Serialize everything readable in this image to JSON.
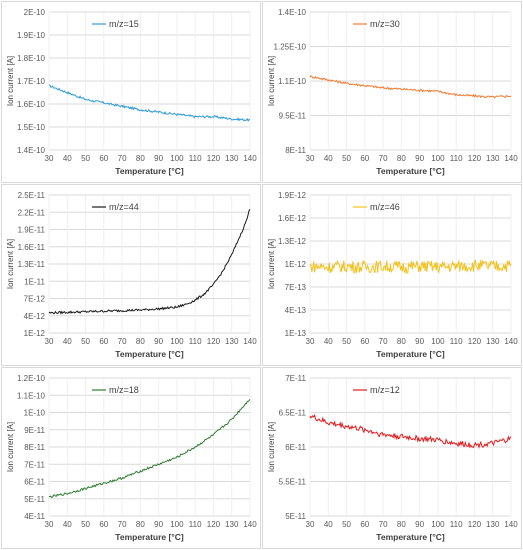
{
  "chart_data": [
    {
      "type": "line",
      "xlabel": "Temperature [°C]",
      "ylabel": "Ion current [A]",
      "xlim": [
        30,
        140
      ],
      "xticks": [
        30,
        40,
        50,
        60,
        70,
        80,
        90,
        100,
        110,
        120,
        130,
        140
      ],
      "ylim": [
        1.4e-10,
        2e-10
      ],
      "yticks": [
        "1.4E-10",
        "1.5E-10",
        "1.6E-10",
        "1.7E-10",
        "1.8E-10",
        "1.9E-10",
        "2E-10"
      ],
      "ytick_values": [
        1.4e-10,
        1.5e-10,
        1.6e-10,
        1.7e-10,
        1.8e-10,
        1.9e-10,
        2e-10
      ],
      "grid": true,
      "legend_position": "top-left",
      "series": [
        {
          "name": "m/z=15",
          "color": "#2e9bd6",
          "x": [
            30,
            40,
            50,
            60,
            70,
            80,
            90,
            100,
            110,
            120,
            130,
            140
          ],
          "y": [
            1.68e-10,
            1.65e-10,
            1.62e-10,
            1.605e-10,
            1.59e-10,
            1.575e-10,
            1.565e-10,
            1.555e-10,
            1.545e-10,
            1.545e-10,
            1.535e-10,
            1.53e-10
          ]
        }
      ]
    },
    {
      "type": "line",
      "xlabel": "Temperature [°C]",
      "ylabel": "Ion current [A]",
      "xlim": [
        30,
        140
      ],
      "xticks": [
        30,
        40,
        50,
        60,
        70,
        80,
        90,
        100,
        110,
        120,
        130,
        140
      ],
      "ylim": [
        8e-11,
        1.4e-10
      ],
      "yticks": [
        "8E-11",
        "9.5E-11",
        "1.1E-10",
        "1.25E-10",
        "1.4E-10"
      ],
      "ytick_values": [
        8e-11,
        9.5e-11,
        1.1e-10,
        1.25e-10,
        1.4e-10
      ],
      "grid": true,
      "legend_position": "top-left",
      "series": [
        {
          "name": "m/z=30",
          "color": "#ed7d31",
          "x": [
            30,
            40,
            50,
            60,
            70,
            80,
            90,
            100,
            110,
            120,
            130,
            140
          ],
          "y": [
            1.12e-10,
            1.105e-10,
            1.09e-10,
            1.08e-10,
            1.07e-10,
            1.065e-10,
            1.06e-10,
            1.055e-10,
            1.04e-10,
            1.035e-10,
            1.03e-10,
            1.035e-10
          ]
        }
      ]
    },
    {
      "type": "line",
      "xlabel": "Temperature [°C]",
      "ylabel": "Ion current [A]",
      "xlim": [
        30,
        140
      ],
      "xticks": [
        30,
        40,
        50,
        60,
        70,
        80,
        90,
        100,
        110,
        120,
        130,
        140
      ],
      "ylim": [
        1e-12,
        2.5e-11
      ],
      "yticks": [
        "1E-12",
        "4E-12",
        "7E-12",
        "1E-11",
        "1.3E-11",
        "1.6E-11",
        "1.9E-11",
        "2.2E-11",
        "2.5E-11"
      ],
      "ytick_values": [
        1e-12,
        4e-12,
        7e-12,
        1e-11,
        1.3e-11,
        1.6e-11,
        1.9e-11,
        2.2e-11,
        2.5e-11
      ],
      "grid": true,
      "legend_position": "top-left",
      "series": [
        {
          "name": "m/z=44",
          "color": "#1a1a1a",
          "x": [
            30,
            40,
            50,
            60,
            70,
            80,
            90,
            100,
            105,
            110,
            115,
            120,
            125,
            130,
            135,
            138,
            140
          ],
          "y": [
            4.5e-12,
            4.6e-12,
            4.7e-12,
            4.8e-12,
            4.9e-12,
            5e-12,
            5.2e-12,
            5.5e-12,
            6e-12,
            6.7e-12,
            7.8e-12,
            9.4e-12,
            1.17e-11,
            1.46e-11,
            1.82e-11,
            2.05e-11,
            2.27e-11
          ]
        }
      ]
    },
    {
      "type": "line",
      "xlabel": "Temperature [°C]",
      "ylabel": "Ion current [A]",
      "xlim": [
        30,
        140
      ],
      "xticks": [
        30,
        40,
        50,
        60,
        70,
        80,
        90,
        100,
        110,
        120,
        130,
        140
      ],
      "ylim": [
        1e-13,
        1.9e-12
      ],
      "yticks": [
        "1E-13",
        "4E-13",
        "7E-13",
        "1E-12",
        "1.3E-12",
        "1.6E-12",
        "1.9E-12"
      ],
      "ytick_values": [
        1e-13,
        4e-13,
        7e-13,
        1e-12,
        1.3e-12,
        1.6e-12,
        1.9e-12
      ],
      "grid": true,
      "legend_position": "top-left",
      "series": [
        {
          "name": "m/z=46",
          "color": "#f2c11a",
          "x": [
            30,
            40,
            50,
            60,
            70,
            80,
            90,
            100,
            110,
            120,
            130,
            140
          ],
          "y": [
            9.7e-13,
            9.6e-13,
            9.7e-13,
            9.6e-13,
            9.7e-13,
            9.6e-13,
            9.7e-13,
            9.6e-13,
            9.7e-13,
            9.8e-13,
            9.7e-13,
            9.8e-13
          ]
        }
      ]
    },
    {
      "type": "line",
      "xlabel": "Temperature [°C]",
      "ylabel": "Ion current [A]",
      "xlim": [
        30,
        140
      ],
      "xticks": [
        30,
        40,
        50,
        60,
        70,
        80,
        90,
        100,
        110,
        120,
        130,
        140
      ],
      "ylim": [
        4e-11,
        1.2e-10
      ],
      "yticks": [
        "4E-11",
        "5E-11",
        "6E-11",
        "7E-11",
        "8E-11",
        "9E-11",
        "1E-10",
        "1.1E-10",
        "1.2E-10"
      ],
      "ytick_values": [
        4e-11,
        5e-11,
        6e-11,
        7e-11,
        8e-11,
        9e-11,
        1e-10,
        1.1e-10,
        1.2e-10
      ],
      "grid": true,
      "legend_position": "top-left",
      "series": [
        {
          "name": "m/z=18",
          "color": "#2e7d32",
          "x": [
            30,
            40,
            50,
            60,
            70,
            80,
            90,
            100,
            110,
            120,
            130,
            140
          ],
          "y": [
            5.1e-11,
            5.3e-11,
            5.6e-11,
            5.9e-11,
            6.2e-11,
            6.6e-11,
            7e-11,
            7.4e-11,
            8e-11,
            8.7e-11,
            9.6e-11,
            1.08e-10
          ]
        }
      ]
    },
    {
      "type": "line",
      "xlabel": "Temperature [°C]",
      "ylabel": "Ion current [A]",
      "xlim": [
        30,
        140
      ],
      "xticks": [
        30,
        40,
        50,
        60,
        70,
        80,
        90,
        100,
        110,
        120,
        130,
        140
      ],
      "ylim": [
        5e-11,
        7e-11
      ],
      "yticks": [
        "5E-11",
        "5.5E-11",
        "6E-11",
        "6.5E-11",
        "7E-11"
      ],
      "ytick_values": [
        5e-11,
        5.5e-11,
        6e-11,
        6.5e-11,
        7e-11
      ],
      "grid": true,
      "legend_position": "top-left",
      "series": [
        {
          "name": "m/z=12",
          "color": "#e31a1c",
          "x": [
            30,
            40,
            50,
            60,
            70,
            80,
            90,
            100,
            110,
            120,
            130,
            140
          ],
          "y": [
            6.45e-11,
            6.35e-11,
            6.3e-11,
            6.25e-11,
            6.18e-11,
            6.15e-11,
            6.12e-11,
            6.1e-11,
            6.05e-11,
            6.03e-11,
            6.05e-11,
            6.12e-11
          ]
        }
      ]
    }
  ]
}
